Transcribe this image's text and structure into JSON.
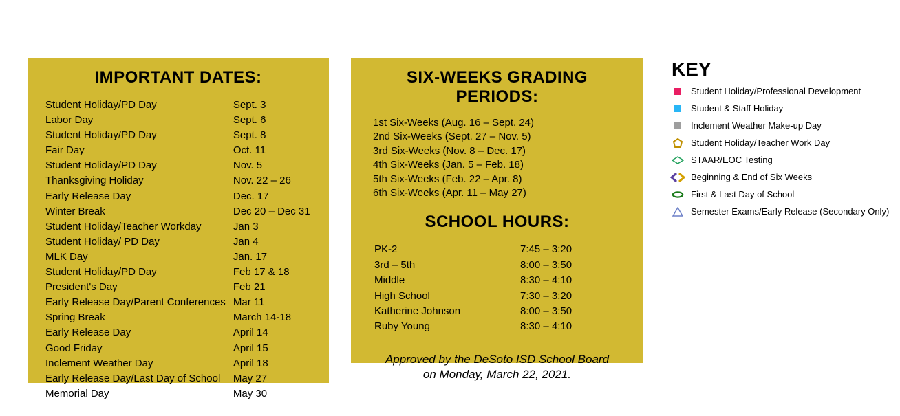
{
  "colors": {
    "panel_bg": "#d2b932",
    "text": "#000000",
    "key_pink": "#e91e63",
    "key_blue": "#29b6f6",
    "key_gray": "#9e9e9e",
    "pentagon_stroke": "#c09000",
    "diamond_stroke": "#1fa05a",
    "arrow_purple": "#5a3fa0",
    "arrow_gold": "#d4a000",
    "ellipse_stroke": "#1a7a1a",
    "triangle_stroke": "#6b7fc7"
  },
  "headings": {
    "important_dates": "IMPORTANT DATES:",
    "grading_periods": "SIX-WEEKS GRADING PERIODS:",
    "school_hours": "SCHOOL HOURS:",
    "key": "KEY"
  },
  "important_dates": [
    {
      "label": "Student Holiday/PD Day",
      "date": "Sept. 3"
    },
    {
      "label": "Labor Day",
      "date": "Sept. 6"
    },
    {
      "label": "Student Holiday/PD Day",
      "date": "Sept. 8"
    },
    {
      "label": "Fair Day",
      "date": "Oct. 11"
    },
    {
      "label": "Student Holiday/PD Day",
      "date": "Nov. 5"
    },
    {
      "label": "Thanksgiving Holiday",
      "date": "Nov. 22 – 26"
    },
    {
      "label": "Early Release Day",
      "date": "Dec. 17"
    },
    {
      "label": "Winter Break",
      "date": "Dec 20 – Dec 31"
    },
    {
      "label": "Student Holiday/Teacher Workday",
      "date": "Jan 3"
    },
    {
      "label": "Student Holiday/ PD Day",
      "date": "Jan 4"
    },
    {
      "label": "MLK Day",
      "date": "Jan. 17"
    },
    {
      "label": "Student Holiday/PD Day",
      "date": "Feb 17 & 18"
    },
    {
      "label": "President's Day",
      "date": "Feb 21"
    },
    {
      "label": "Early Release Day/Parent Conferences",
      "date": "Mar 11"
    },
    {
      "label": "Spring Break",
      "date": "March 14-18"
    },
    {
      "label": "Early Release Day",
      "date": "April 14"
    },
    {
      "label": "Good Friday",
      "date": "April 15"
    },
    {
      "label": "Inclement Weather Day",
      "date": "April 18"
    },
    {
      "label": "Early Release Day/Last Day of School",
      "date": "May 27"
    },
    {
      "label": "Memorial Day",
      "date": "May 30"
    }
  ],
  "grading_periods": [
    "1st Six-Weeks (Aug. 16 – Sept. 24)",
    "2nd Six-Weeks (Sept. 27 – Nov. 5)",
    "3rd Six-Weeks (Nov. 8 – Dec. 17)",
    "4th Six-Weeks (Jan. 5 – Feb. 18)",
    "5th Six-Weeks (Feb. 22 – Apr. 8)",
    "6th Six-Weeks (Apr. 11 – May 27)"
  ],
  "school_hours": [
    {
      "group": "PK-2",
      "hours": "7:45 – 3:20"
    },
    {
      "group": "3rd – 5th",
      "hours": "8:00 – 3:50"
    },
    {
      "group": "Middle",
      "hours": "8:30 – 4:10"
    },
    {
      "group": "High School",
      "hours": "7:30 – 3:20"
    },
    {
      "group": "Katherine Johnson",
      "hours": "8:00 – 3:50"
    },
    {
      "group": "Ruby Young",
      "hours": "8:30 – 4:10"
    }
  ],
  "approved_line1": "Approved by the DeSoto ISD School Board",
  "approved_line2": "on Monday, March 22, 2021.",
  "key_items": [
    "Student Holiday/Professional Development",
    "Student & Staff Holiday",
    "Inclement Weather Make-up Day",
    "Student Holiday/Teacher Work Day",
    "STAAR/EOC Testing",
    "Beginning & End of Six Weeks",
    "First & Last Day of School",
    "Semester Exams/Early Release (Secondary Only)"
  ]
}
